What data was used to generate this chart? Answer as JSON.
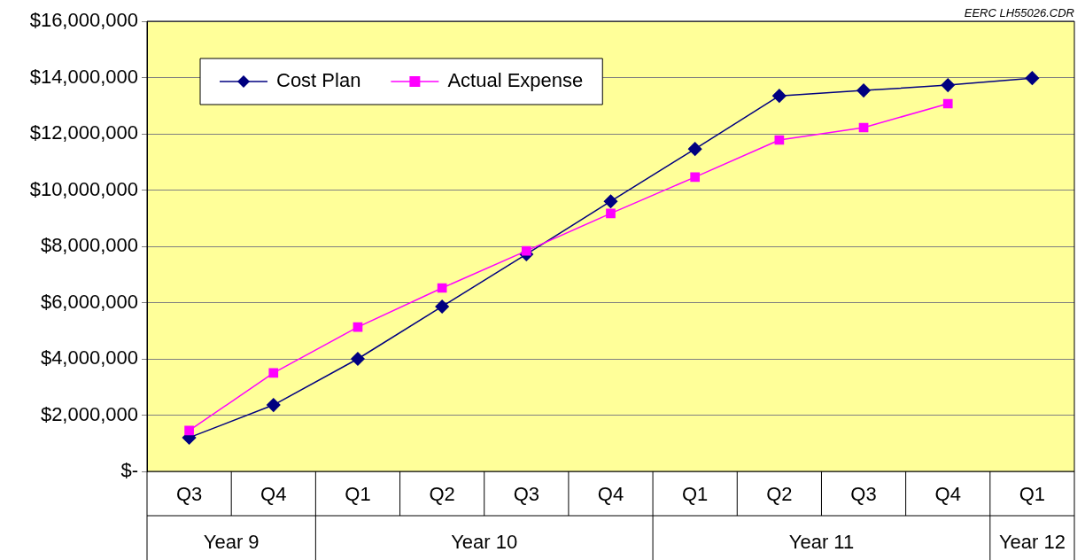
{
  "chart_data": {
    "type": "line",
    "categories": [
      "Q3",
      "Q4",
      "Q1",
      "Q2",
      "Q3",
      "Q4",
      "Q1",
      "Q2",
      "Q3",
      "Q4",
      "Q1"
    ],
    "series": [
      {
        "name": "Cost Plan",
        "color": "#000080",
        "marker": "diamond",
        "values": [
          1200000,
          2360000,
          4000000,
          5860000,
          7720000,
          9600000,
          11460000,
          13350000,
          13540000,
          13730000,
          13980000
        ]
      },
      {
        "name": "Actual Expense",
        "color": "#ff00ff",
        "marker": "square",
        "values": [
          1450000,
          3500000,
          5130000,
          6520000,
          7840000,
          9170000,
          10460000,
          11780000,
          12220000,
          13070000,
          null
        ]
      }
    ],
    "ylim": [
      0,
      16000000
    ],
    "yticks": [
      {
        "value": 0,
        "label": "$-"
      },
      {
        "value": 2000000,
        "label": "$2,000,000"
      },
      {
        "value": 4000000,
        "label": "$4,000,000"
      },
      {
        "value": 6000000,
        "label": "$6,000,000"
      },
      {
        "value": 8000000,
        "label": "$8,000,000"
      },
      {
        "value": 10000000,
        "label": "$10,000,000"
      },
      {
        "value": 12000000,
        "label": "$12,000,000"
      },
      {
        "value": 14000000,
        "label": "$14,000,000"
      },
      {
        "value": 16000000,
        "label": "$16,000,000"
      }
    ],
    "grid": "y",
    "legend": "top left",
    "line_style": "solid",
    "annotations": [
      "EERC LH55026.CDR",
      "Year 9",
      "Year 10",
      "Year 11",
      "Year 12"
    ]
  }
}
